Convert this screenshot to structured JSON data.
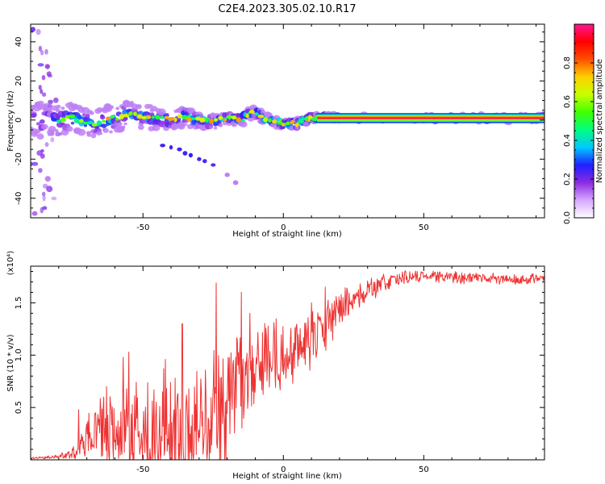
{
  "title": "C2E4.2023.305.02.10.R17",
  "chart_data": [
    {
      "id": "spectrogram",
      "type": "heatmap",
      "xlabel": "Height of straight line (km)",
      "ylabel": "Frequency (Hz)",
      "xlim": [
        -90,
        93
      ],
      "ylim": [
        -50,
        49
      ],
      "xticks": [
        -50,
        0,
        50
      ],
      "yticks": [
        -40,
        -20,
        0,
        20,
        40
      ],
      "xtick_labels": [
        "-50",
        "0",
        "50"
      ],
      "ytick_labels": [
        "-40",
        "-20",
        "0",
        "20",
        "40"
      ],
      "colorbar": {
        "label": "Normalized spectral amplitude",
        "range": [
          0,
          1
        ],
        "ticks": [
          0.0,
          0.2,
          0.4,
          0.6,
          0.8
        ],
        "tick_labels": [
          "0.0",
          "0.2",
          "0.4",
          "0.6",
          "0.8"
        ],
        "colors": [
          "#ffffff",
          "#d6a8ff",
          "#8a2be2",
          "#2020ff",
          "#00c8ff",
          "#00ff80",
          "#40ff00",
          "#c8ff00",
          "#ffd000",
          "#ff5000",
          "#ff0000",
          "#ff1493"
        ]
      },
      "ridge": {
        "x": [
          -90,
          -80,
          -75,
          -70,
          -65,
          -60,
          -55,
          -50,
          -45,
          -40,
          -35,
          -30,
          -25,
          -20,
          -15,
          -12,
          -10,
          -8,
          -5,
          0,
          5,
          8,
          10,
          20,
          40,
          60,
          80,
          93
        ],
        "y": [
          0,
          0,
          1,
          -2,
          -1,
          1,
          3,
          2,
          1,
          0,
          2,
          0,
          -1,
          1,
          0,
          3,
          4,
          2,
          0,
          -2,
          -2,
          0,
          1,
          1,
          1,
          1,
          1,
          1
        ],
        "amplitude": [
          0.3,
          0.35,
          0.4,
          0.45,
          0.45,
          0.45,
          0.45,
          0.45,
          0.45,
          0.45,
          0.45,
          0.5,
          0.5,
          0.55,
          0.55,
          0.6,
          0.6,
          0.65,
          0.7,
          0.85,
          0.85,
          0.9,
          0.92,
          0.95,
          0.95,
          0.95,
          0.95,
          0.95
        ],
        "halfwidth_hz": [
          9,
          8,
          8,
          7,
          7,
          7,
          6,
          6,
          6,
          5,
          5,
          4,
          4,
          3,
          3,
          3,
          3,
          3,
          2.5,
          2.5,
          2.5,
          2.5,
          2.5,
          2,
          2,
          2,
          2,
          2
        ]
      },
      "scattered_branch": {
        "x": [
          -88,
          -86,
          -84,
          -85,
          -87,
          -83,
          -82,
          -86,
          -88,
          -85,
          -84,
          -87
        ],
        "y": [
          45,
          35,
          28,
          22,
          15,
          10,
          -10,
          -18,
          -25,
          -33,
          -40,
          -45
        ]
      },
      "lower_branch": {
        "x": [
          -43,
          -40,
          -37,
          -35,
          -33,
          -30,
          -28,
          -25,
          -20,
          -17
        ],
        "y": [
          -13,
          -14,
          -15,
          -17,
          -18,
          -20,
          -21,
          -23,
          -28,
          -32
        ]
      }
    },
    {
      "id": "snr",
      "type": "line",
      "series_name": "SNR",
      "color": "#ee3333",
      "xlabel": "Height of straight line (km)",
      "ylabel": "SNR (10 * v/v)",
      "yscale_label": "(x10⁴)",
      "xlim": [
        -90,
        93
      ],
      "ylim": [
        0,
        1.85
      ],
      "xticks": [
        -50,
        0,
        50
      ],
      "yticks": [
        0.5,
        1.0,
        1.5
      ],
      "xtick_labels": [
        "-50",
        "0",
        "50"
      ],
      "ytick_labels": [
        "0.5",
        "1.0",
        "1.5"
      ],
      "envelope": {
        "x": [
          -90,
          -80,
          -73,
          -70,
          -65,
          -60,
          -55,
          -50,
          -45,
          -40,
          -35,
          -30,
          -25,
          -22,
          -20,
          -15,
          -10,
          -5,
          0,
          5,
          10,
          15,
          20,
          25,
          30,
          35,
          40,
          45,
          50,
          55,
          60,
          70,
          80,
          90,
          93
        ],
        "mean": [
          0.01,
          0.03,
          0.08,
          0.25,
          0.3,
          0.3,
          0.3,
          0.28,
          0.3,
          0.3,
          0.3,
          0.32,
          0.32,
          0.4,
          0.5,
          0.7,
          0.85,
          0.95,
          1.0,
          1.05,
          1.15,
          1.3,
          1.45,
          1.55,
          1.62,
          1.68,
          1.72,
          1.75,
          1.76,
          1.75,
          1.74,
          1.74,
          1.73,
          1.72,
          1.72
        ],
        "spread": [
          0.01,
          0.02,
          0.07,
          0.2,
          0.3,
          0.4,
          0.5,
          0.5,
          0.55,
          0.55,
          0.6,
          0.6,
          0.7,
          0.65,
          0.6,
          0.5,
          0.45,
          0.4,
          0.35,
          0.35,
          0.3,
          0.25,
          0.2,
          0.15,
          0.12,
          0.1,
          0.08,
          0.07,
          0.06,
          0.06,
          0.06,
          0.06,
          0.06,
          0.06,
          0.06
        ],
        "peaks": [
          {
            "x": -73,
            "y": 0.48
          },
          {
            "x": -63,
            "y": 0.7
          },
          {
            "x": -57,
            "y": 0.98
          },
          {
            "x": -55,
            "y": 1.03
          },
          {
            "x": -42,
            "y": 0.96
          },
          {
            "x": -36,
            "y": 1.3
          },
          {
            "x": -24,
            "y": 1.69
          },
          {
            "x": -15,
            "y": 1.6
          },
          {
            "x": -12,
            "y": 1.4
          },
          {
            "x": 10,
            "y": 1.5
          },
          {
            "x": 15,
            "y": 1.65
          }
        ]
      }
    }
  ]
}
